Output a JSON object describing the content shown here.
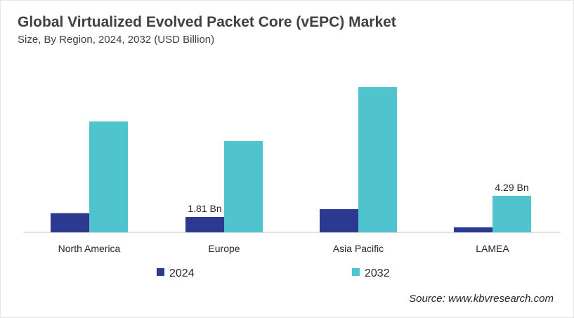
{
  "chart_data": {
    "type": "bar",
    "title": "Global Virtualized Evolved Packet Core (vEPC) Market",
    "subtitle": "Size, By Region, 2024, 2032 (USD Billion)",
    "categories": [
      "North America",
      "Europe",
      "Asia Pacific",
      "LAMEA"
    ],
    "series": [
      {
        "name": "2024",
        "color": "#2b3990",
        "values": [
          2.25,
          1.81,
          2.72,
          0.6
        ],
        "labels": [
          "",
          "1.81 Bn",
          "",
          ""
        ]
      },
      {
        "name": "2032",
        "color": "#4fc4cf",
        "values": [
          13.0,
          10.7,
          17.04,
          4.29
        ],
        "labels": [
          "",
          "",
          "",
          "4.29 Bn"
        ]
      }
    ],
    "ylim": [
      0,
      18
    ],
    "grid": false,
    "legend": "bottom",
    "source": "Source: www.kbvresearch.com"
  }
}
